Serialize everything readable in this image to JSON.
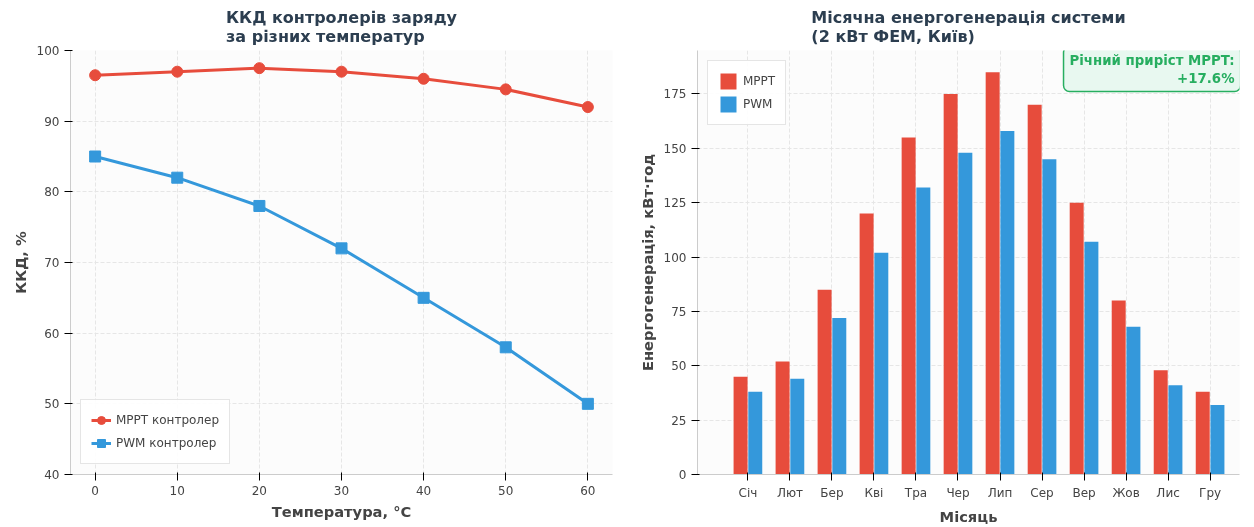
{
  "chart_data": [
    {
      "type": "line",
      "title": "ККД контролерів заряду\nза різних температур",
      "xlabel": "Температура, °C",
      "ylabel": "ККД, %",
      "x": [
        0,
        10,
        20,
        30,
        40,
        50,
        60
      ],
      "xlim": [
        -3,
        63
      ],
      "ylim": [
        40,
        100
      ],
      "xticks": [
        0,
        10,
        20,
        30,
        40,
        50,
        60
      ],
      "yticks": [
        40,
        50,
        60,
        70,
        80,
        90,
        100
      ],
      "grid": true,
      "legend": "bottom left",
      "line_style": "solid",
      "series": [
        {
          "name": "MPPT контролер",
          "color": "#e74c3c",
          "marker": "circle",
          "values": [
            96.5,
            97,
            97.5,
            97,
            96,
            94.5,
            92
          ]
        },
        {
          "name": "PWM контролер",
          "color": "#3498db",
          "marker": "square",
          "values": [
            85,
            82,
            78,
            72,
            65,
            58,
            50
          ]
        }
      ]
    },
    {
      "type": "bar",
      "title": "Місячна енергогенерація системи\n(2 кВт ФЕМ, Київ)",
      "xlabel": "Місяць",
      "ylabel": "Енергогенерація, кВт·год",
      "categories": [
        "Січ",
        "Лют",
        "Бер",
        "Кві",
        "Тра",
        "Чер",
        "Лип",
        "Сер",
        "Вер",
        "Жов",
        "Лис",
        "Гру"
      ],
      "ylim": [
        0,
        195
      ],
      "yticks": [
        0,
        25,
        50,
        75,
        100,
        125,
        150,
        175
      ],
      "grid": true,
      "legend": "top left",
      "annotations": [
        "Річний приріст MPPT:\n+17.6%"
      ],
      "series": [
        {
          "name": "MPPT",
          "color": "#e74c3c",
          "values": [
            45,
            52,
            85,
            120,
            155,
            175,
            185,
            170,
            125,
            80,
            48,
            38
          ]
        },
        {
          "name": "PWM",
          "color": "#3498db",
          "values": [
            38,
            44,
            72,
            102,
            132,
            148,
            158,
            145,
            107,
            68,
            41,
            32
          ]
        }
      ]
    }
  ]
}
